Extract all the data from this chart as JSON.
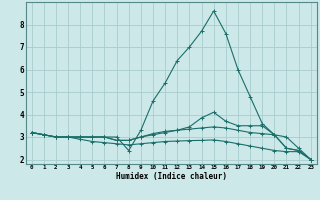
{
  "xlabel": "Humidex (Indice chaleur)",
  "bg_color": "#cce8e8",
  "grid_color": "#aacccc",
  "line_color": "#1a6e6a",
  "xlim": [
    -0.5,
    23.5
  ],
  "ylim": [
    1.8,
    9.0
  ],
  "x": [
    0,
    1,
    2,
    3,
    4,
    5,
    6,
    7,
    8,
    9,
    10,
    11,
    12,
    13,
    14,
    15,
    16,
    17,
    18,
    19,
    20,
    21,
    22,
    23
  ],
  "series": [
    [
      3.2,
      3.1,
      3.0,
      3.0,
      3.0,
      3.0,
      3.0,
      3.0,
      2.4,
      3.3,
      4.6,
      5.4,
      6.4,
      7.0,
      7.7,
      8.6,
      7.6,
      6.0,
      4.8,
      3.6,
      3.1,
      2.5,
      2.4,
      2.0
    ],
    [
      3.2,
      3.1,
      3.0,
      3.0,
      3.0,
      3.0,
      3.0,
      2.85,
      2.85,
      3.0,
      3.15,
      3.25,
      3.3,
      3.35,
      3.4,
      3.45,
      3.4,
      3.3,
      3.2,
      3.15,
      3.1,
      3.0,
      2.5,
      2.0
    ],
    [
      3.2,
      3.1,
      3.0,
      3.0,
      2.9,
      2.8,
      2.75,
      2.7,
      2.65,
      2.7,
      2.75,
      2.8,
      2.82,
      2.84,
      2.85,
      2.87,
      2.8,
      2.7,
      2.6,
      2.5,
      2.4,
      2.35,
      2.35,
      2.0
    ],
    [
      3.2,
      3.1,
      3.0,
      3.0,
      3.0,
      3.0,
      3.0,
      2.85,
      2.85,
      3.0,
      3.1,
      3.2,
      3.3,
      3.45,
      3.85,
      4.1,
      3.7,
      3.5,
      3.5,
      3.5,
      3.1,
      2.5,
      2.4,
      2.0
    ]
  ],
  "xtick_labels": [
    "0",
    "1",
    "2",
    "3",
    "4",
    "5",
    "6",
    "7",
    "8",
    "9",
    "10",
    "11",
    "12",
    "13",
    "14",
    "15",
    "16",
    "17",
    "18",
    "19",
    "20",
    "21",
    "22",
    "23"
  ],
  "ytick_vals": [
    2,
    3,
    4,
    5,
    6,
    7,
    8
  ]
}
